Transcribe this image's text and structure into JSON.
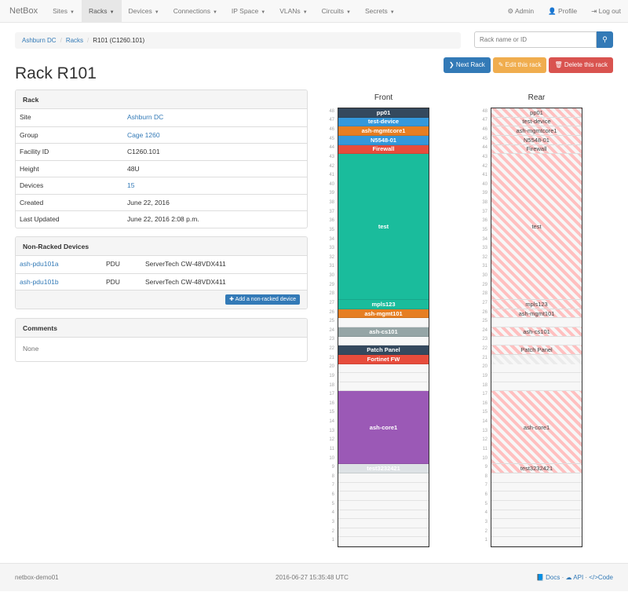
{
  "nav": {
    "brand": "NetBox",
    "items": [
      "Sites",
      "Racks",
      "Devices",
      "Connections",
      "IP Space",
      "VLANs",
      "Circuits",
      "Secrets"
    ],
    "active": "Racks",
    "right": [
      {
        "icon": "gear-icon",
        "label": "Admin"
      },
      {
        "icon": "user-icon",
        "label": "Profile"
      },
      {
        "icon": "logout-icon",
        "label": "Log out"
      }
    ]
  },
  "breadcrumb": [
    "Ashburn DC",
    "Racks",
    "R101 (C1260.101)"
  ],
  "search": {
    "placeholder": "Rack name or ID",
    "value": ""
  },
  "actions": {
    "next": "Next Rack",
    "edit": "Edit this rack",
    "delete": "Delete this rack"
  },
  "colors": {
    "primary": "#337ab7",
    "warning": "#f0ad4e",
    "danger": "#d9534f"
  },
  "title": "Rack R101",
  "rack_panel": {
    "heading": "Rack",
    "rows": [
      {
        "k": "Site",
        "v": "Ashburn DC",
        "link": true
      },
      {
        "k": "Group",
        "v": "Cage 1260",
        "link": true
      },
      {
        "k": "Facility ID",
        "v": "C1260.101"
      },
      {
        "k": "Height",
        "v": "48U"
      },
      {
        "k": "Devices",
        "v": "15",
        "link": true
      },
      {
        "k": "Created",
        "v": "June 22, 2016"
      },
      {
        "k": "Last Updated",
        "v": "June 22, 2016 2:08 p.m."
      }
    ]
  },
  "nonracked": {
    "heading": "Non-Racked Devices",
    "rows": [
      [
        "ash-pdu101a",
        "PDU",
        "ServerTech CW-48VDX411"
      ],
      [
        "ash-pdu101b",
        "PDU",
        "ServerTech CW-48VDX411"
      ]
    ],
    "add": "Add a non-racked device"
  },
  "comments": {
    "heading": "Comments",
    "text": "None"
  },
  "elevation": {
    "front_label": "Front",
    "rear_label": "Rear",
    "units": 48,
    "devices": [
      {
        "name": "pp01",
        "top": 48,
        "height": 1,
        "color": "#34495e",
        "rear": true
      },
      {
        "name": "test-device",
        "top": 47,
        "height": 1,
        "color": "#3498db",
        "rear": true
      },
      {
        "name": "ash-mgmtcore1",
        "top": 46,
        "height": 1,
        "color": "#e67e22",
        "rear": true
      },
      {
        "name": "N5548-01",
        "top": 45,
        "height": 1,
        "color": "#3498db",
        "rear": true
      },
      {
        "name": "Firewall",
        "top": 44,
        "height": 1,
        "color": "#e74c3c",
        "rear": true
      },
      {
        "name": "test",
        "top": 43,
        "height": 16,
        "color": "#1abc9c",
        "rear": true
      },
      {
        "name": "mpls123",
        "top": 27,
        "height": 1,
        "color": "#1abc9c",
        "rear": true
      },
      {
        "name": "ash-mgmt101",
        "top": 26,
        "height": 1,
        "color": "#e67e22",
        "rear": true
      },
      {
        "name": "ash-cs101",
        "top": 24,
        "height": 1,
        "color": "#95a5a6",
        "rear": true
      },
      {
        "name": "Patch Panel",
        "top": 22,
        "height": 1,
        "color": "#34495e",
        "rear": true
      },
      {
        "name": "Fortinet FW",
        "top": 21,
        "height": 1,
        "color": "#e74c3c",
        "rear": false
      },
      {
        "name": "ash-core1",
        "top": 17,
        "height": 8,
        "color": "#9b59b6",
        "rear": true
      },
      {
        "name": "test3232421",
        "top": 9,
        "height": 1,
        "color": "#dde2e5",
        "rear": true
      }
    ]
  },
  "footer": {
    "host": "netbox-demo01",
    "time": "2016-06-27 15:35:48 UTC",
    "docs": "Docs",
    "api": "API",
    "code": "Code"
  }
}
